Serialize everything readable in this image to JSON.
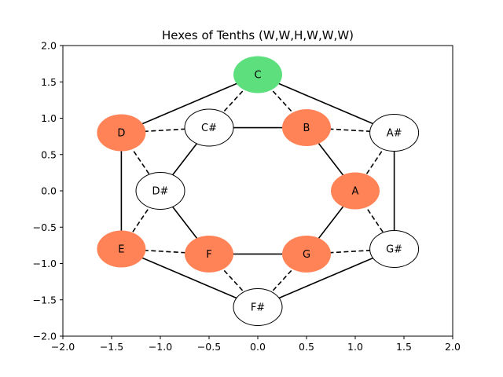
{
  "chart_data": {
    "type": "network",
    "title": "Hexes of Tenths (W,W,H,W,W,W)",
    "xlabel": "",
    "ylabel": "",
    "xlim": [
      -2.0,
      2.0
    ],
    "ylim": [
      -2.0,
      2.0
    ],
    "x_ticks": [
      -2.0,
      -1.5,
      -1.0,
      -0.5,
      0.0,
      0.5,
      1.0,
      1.5,
      2.0
    ],
    "y_ticks": [
      -2.0,
      -1.5,
      -1.0,
      -0.5,
      0.0,
      0.5,
      1.0,
      1.5,
      2.0
    ],
    "x_tick_labels": [
      "−2.0",
      "−1.5",
      "−1.0",
      "−0.5",
      "0.0",
      "0.5",
      "1.0",
      "1.5",
      "2.0"
    ],
    "y_tick_labels": [
      "−2.0",
      "−1.5",
      "−1.0",
      "−0.5",
      "0.0",
      "0.5",
      "1.0",
      "1.5",
      "2.0"
    ],
    "grid": false,
    "colors": {
      "highlight_root": "#5ddf7e",
      "highlight": "#ff8357",
      "plain": "#ffffff",
      "edge": "#000000"
    },
    "nodes": [
      {
        "id": "C",
        "label": "C",
        "x": 0.0,
        "y": 1.6,
        "status": "root"
      },
      {
        "id": "D",
        "label": "D",
        "x": -1.4,
        "y": 0.8,
        "status": "highlight"
      },
      {
        "id": "C#",
        "label": "C#",
        "x": -0.5,
        "y": 0.87,
        "status": "plain"
      },
      {
        "id": "B",
        "label": "B",
        "x": 0.5,
        "y": 0.87,
        "status": "highlight"
      },
      {
        "id": "A#",
        "label": "A#",
        "x": 1.4,
        "y": 0.8,
        "status": "plain"
      },
      {
        "id": "D#",
        "label": "D#",
        "x": -1.0,
        "y": 0.0,
        "status": "plain"
      },
      {
        "id": "A",
        "label": "A",
        "x": 1.0,
        "y": 0.0,
        "status": "highlight"
      },
      {
        "id": "E",
        "label": "E",
        "x": -1.4,
        "y": -0.8,
        "status": "highlight"
      },
      {
        "id": "F",
        "label": "F",
        "x": -0.5,
        "y": -0.87,
        "status": "highlight"
      },
      {
        "id": "G",
        "label": "G",
        "x": 0.5,
        "y": -0.87,
        "status": "highlight"
      },
      {
        "id": "G#",
        "label": "G#",
        "x": 1.4,
        "y": -0.8,
        "status": "plain"
      },
      {
        "id": "F#",
        "label": "F#",
        "x": 0.0,
        "y": -1.6,
        "status": "plain"
      }
    ],
    "edges": [
      {
        "from": "C",
        "to": "D",
        "style": "solid"
      },
      {
        "from": "C",
        "to": "A#",
        "style": "solid"
      },
      {
        "from": "D",
        "to": "E",
        "style": "solid"
      },
      {
        "from": "A#",
        "to": "G#",
        "style": "solid"
      },
      {
        "from": "E",
        "to": "F#",
        "style": "solid"
      },
      {
        "from": "G#",
        "to": "F#",
        "style": "solid"
      },
      {
        "from": "C#",
        "to": "B",
        "style": "solid"
      },
      {
        "from": "C#",
        "to": "D#",
        "style": "solid"
      },
      {
        "from": "B",
        "to": "A",
        "style": "solid"
      },
      {
        "from": "D#",
        "to": "F",
        "style": "solid"
      },
      {
        "from": "A",
        "to": "G",
        "style": "solid"
      },
      {
        "from": "F",
        "to": "G",
        "style": "solid"
      },
      {
        "from": "C",
        "to": "C#",
        "style": "dashed"
      },
      {
        "from": "C",
        "to": "B",
        "style": "dashed"
      },
      {
        "from": "D",
        "to": "C#",
        "style": "dashed"
      },
      {
        "from": "D",
        "to": "D#",
        "style": "dashed"
      },
      {
        "from": "B",
        "to": "A#",
        "style": "dashed"
      },
      {
        "from": "A#",
        "to": "A",
        "style": "dashed"
      },
      {
        "from": "D#",
        "to": "E",
        "style": "dashed"
      },
      {
        "from": "E",
        "to": "F",
        "style": "dashed"
      },
      {
        "from": "A",
        "to": "G#",
        "style": "dashed"
      },
      {
        "from": "G",
        "to": "G#",
        "style": "dashed"
      },
      {
        "from": "F",
        "to": "F#",
        "style": "dashed"
      },
      {
        "from": "G",
        "to": "F#",
        "style": "dashed"
      }
    ]
  }
}
